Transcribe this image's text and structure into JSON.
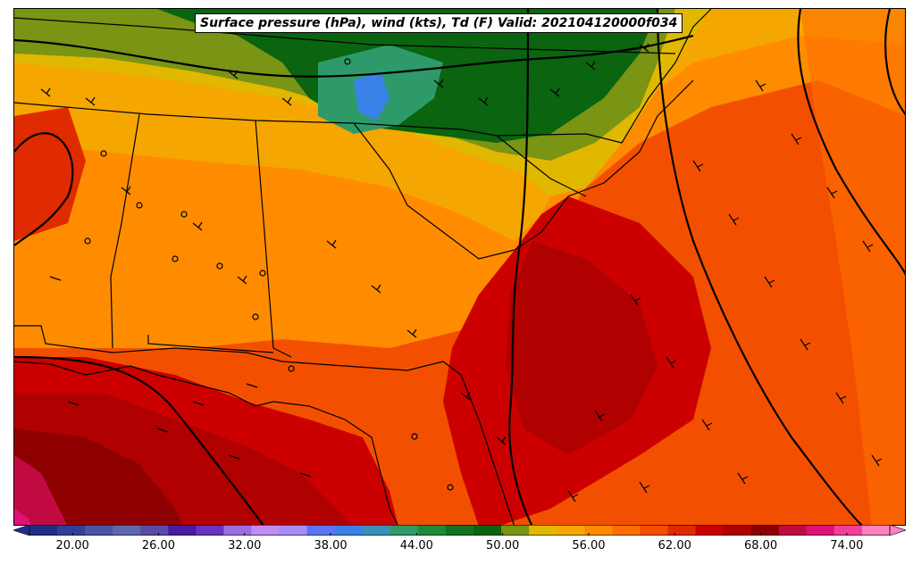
{
  "title": "Surface pressure (hPa), wind (kts), Td (F) Valid: 202104120000f034",
  "colorbar": {
    "min": 17,
    "max": 77,
    "step": 2,
    "extend": "both",
    "colors": [
      "#1e2e86",
      "#313f96",
      "#4a56a3",
      "#5d68ad",
      "#5a4aa7",
      "#4a1aa3",
      "#6a32c0",
      "#9a6ee0",
      "#c08cf0",
      "#a78cf5",
      "#5a74f5",
      "#3b82e8",
      "#3990b8",
      "#2e9a6a",
      "#1e8a3a",
      "#137224",
      "#0a6410",
      "#7a9414",
      "#e0b800",
      "#f5a800",
      "#ff8c00",
      "#ff6e00",
      "#f25000",
      "#e02a00",
      "#cc0000",
      "#b00000",
      "#8e0000",
      "#c20a42",
      "#e0127a",
      "#f0409a",
      "#ff80c0"
    ],
    "tick_values": [
      20,
      26,
      32,
      38,
      44,
      50,
      56,
      62,
      68,
      74
    ],
    "tick_labels": [
      "20.00",
      "26.00",
      "32.00",
      "38.00",
      "44.00",
      "50.00",
      "56.00",
      "62.00",
      "68.00",
      "74.00"
    ]
  }
}
